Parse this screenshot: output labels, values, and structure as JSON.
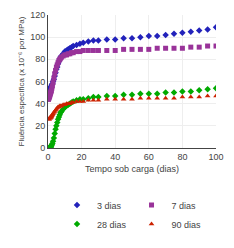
{
  "chart_data": {
    "type": "scatter",
    "xlabel": "Tempo sob carga (dias)",
    "ylabel": "Fluência específica (x 10⁻⁶ por MPa)",
    "xlim": [
      0,
      100
    ],
    "ylim": [
      0,
      120
    ],
    "xticks": [
      0,
      20,
      40,
      60,
      80,
      100
    ],
    "yticks": [
      0,
      20,
      40,
      60,
      80,
      100,
      120
    ],
    "grid": true,
    "legend": "bottom",
    "series": [
      {
        "name": "3 dias",
        "color": "#2222bb",
        "marker": "diamond",
        "x": [
          0.2,
          0.3,
          0.4,
          0.5,
          0.6,
          0.7,
          0.8,
          0.9,
          1.0,
          1.2,
          1.4,
          1.6,
          1.8,
          2.0,
          2.3,
          2.6,
          3.0,
          3.5,
          4.0,
          4.5,
          5.0,
          5.5,
          6.0,
          6.5,
          7.0,
          7.5,
          8.0,
          9.0,
          10,
          11,
          12,
          13,
          14,
          15,
          17,
          19,
          21,
          24,
          27,
          30,
          35,
          40,
          45,
          50,
          55,
          60,
          65,
          70,
          75,
          80,
          85,
          90,
          95,
          100
        ],
        "values": [
          49,
          49,
          50,
          50,
          51,
          51,
          52,
          52,
          52,
          53,
          54,
          55,
          55,
          56,
          57,
          58,
          60,
          62,
          65,
          68,
          71,
          73,
          76,
          78,
          80,
          82,
          83,
          85,
          87,
          88,
          89,
          90,
          91,
          92,
          93,
          94,
          95,
          96,
          97,
          97,
          98,
          98,
          99,
          99,
          100,
          101,
          101,
          102,
          103,
          104,
          105,
          106,
          107,
          109
        ]
      },
      {
        "name": "7 dias",
        "color": "#993399",
        "marker": "square",
        "x": [
          0.2,
          0.3,
          0.4,
          0.5,
          0.6,
          0.7,
          0.8,
          0.9,
          1.0,
          1.2,
          1.4,
          1.6,
          1.8,
          2.0,
          2.3,
          2.6,
          3.0,
          3.5,
          4.0,
          4.5,
          5.0,
          5.5,
          6.0,
          6.5,
          7.0,
          7.5,
          8.0,
          9.0,
          10,
          11,
          12,
          13,
          14,
          15,
          17,
          19,
          21,
          24,
          27,
          30,
          35,
          40,
          45,
          50,
          55,
          60,
          65,
          70,
          75,
          80,
          85,
          90,
          95,
          100
        ],
        "values": [
          44,
          44,
          45,
          45,
          46,
          46,
          47,
          47,
          47,
          48,
          49,
          50,
          51,
          52,
          54,
          56,
          59,
          63,
          67,
          70,
          73,
          75,
          77,
          79,
          80,
          81,
          82,
          83,
          84,
          84,
          85,
          85,
          86,
          86,
          87,
          87,
          88,
          88,
          88,
          88,
          88,
          88,
          89,
          89,
          89,
          89,
          90,
          90,
          90,
          90,
          91,
          91,
          92,
          92
        ]
      },
      {
        "name": "28 dias",
        "color": "#00aa00",
        "marker": "diamond",
        "x": [
          0.5,
          0.7,
          0.9,
          1.0,
          1.2,
          1.4,
          1.6,
          1.8,
          2.0,
          2.3,
          2.6,
          3.0,
          3.5,
          4.0,
          4.5,
          5.0,
          5.5,
          6.0,
          6.5,
          7.0,
          7.5,
          8.0,
          9.0,
          10,
          11,
          12,
          13,
          14,
          15,
          17,
          19,
          21,
          24,
          27,
          30,
          35,
          40,
          45,
          50,
          55,
          60,
          65,
          70,
          75,
          80,
          85,
          90,
          95,
          100
        ],
        "values": [
          0,
          0,
          0,
          0,
          0,
          1,
          1,
          1,
          2,
          3,
          4,
          6,
          9,
          13,
          17,
          20,
          23,
          26,
          28,
          30,
          32,
          33,
          35,
          37,
          38,
          39,
          40,
          41,
          42,
          43,
          44,
          44,
          45,
          46,
          46,
          47,
          47,
          48,
          48,
          49,
          49,
          49,
          50,
          50,
          51,
          51,
          52,
          53,
          54
        ]
      },
      {
        "name": "90 dias",
        "color": "#cc2200",
        "marker": "triangle-up",
        "x": [
          0.5,
          0.7,
          0.9,
          1.0,
          1.2,
          1.4,
          1.6,
          1.8,
          2.0,
          2.3,
          2.6,
          3.0,
          3.5,
          4.0,
          4.5,
          5.0,
          5.5,
          6.0,
          6.5,
          7.0,
          7.5,
          8.0,
          9.0,
          10,
          11,
          12,
          13,
          14,
          15,
          17,
          19,
          21,
          24,
          27,
          30,
          35,
          40,
          45,
          50,
          55,
          60,
          65,
          70,
          75,
          80,
          85,
          90,
          95,
          100
        ],
        "values": [
          26,
          26,
          27,
          27,
          27,
          27,
          28,
          28,
          28,
          29,
          30,
          31,
          32,
          33,
          34,
          35,
          36,
          37,
          37,
          38,
          38,
          38,
          39,
          39,
          40,
          40,
          40,
          41,
          41,
          42,
          42,
          42,
          43,
          43,
          43,
          44,
          44,
          44,
          44,
          45,
          45,
          45,
          45,
          45,
          46,
          46,
          46,
          47,
          47
        ]
      }
    ]
  }
}
